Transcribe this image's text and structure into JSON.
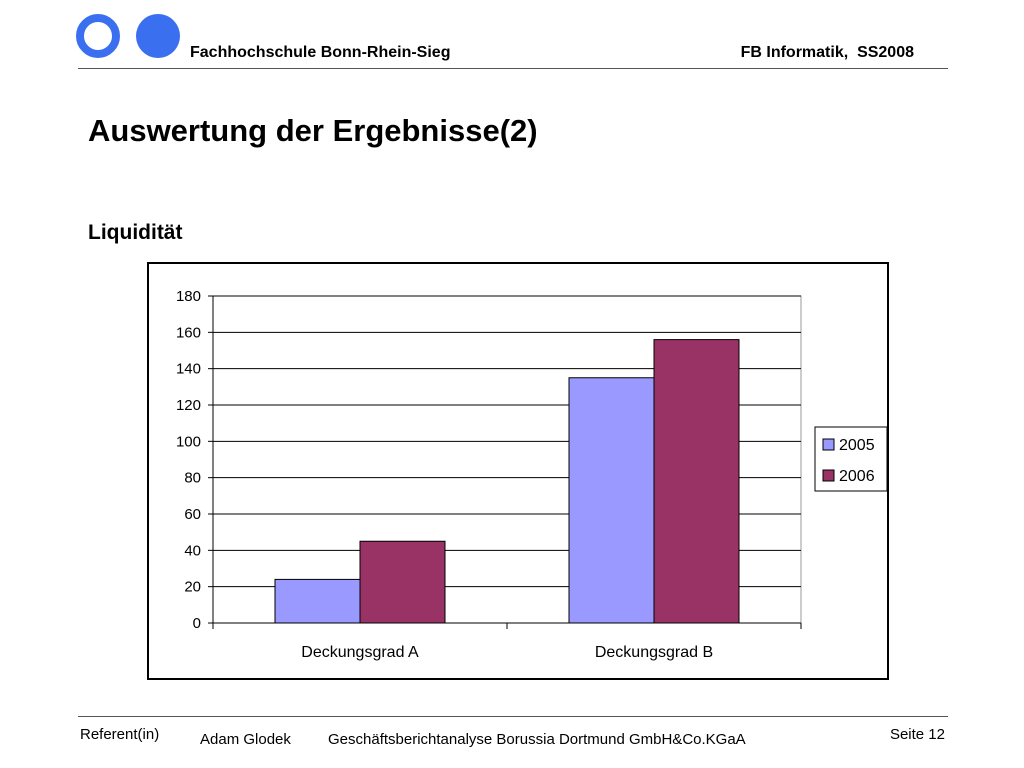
{
  "header": {
    "institution": "Fachhochschule Bonn-Rhein-Sieg",
    "department": "FB Informatik,  SS2008"
  },
  "slide": {
    "title": "Auswertung der Ergebnisse(2)",
    "subtitle": "Liquidität"
  },
  "chart_data": {
    "type": "bar",
    "categories": [
      "Deckungsgrad A",
      "Deckungsgrad B"
    ],
    "series": [
      {
        "name": "2005",
        "values": [
          24,
          135
        ],
        "color": "#9999ff"
      },
      {
        "name": "2006",
        "values": [
          45,
          156
        ],
        "color": "#993366"
      }
    ],
    "ylim": [
      0,
      180
    ],
    "yticks": [
      0,
      20,
      40,
      60,
      80,
      100,
      120,
      140,
      160,
      180
    ],
    "grid": true,
    "legend": "right"
  },
  "footer": {
    "referent_label": "Referent(in)",
    "author": "Adam Glodek",
    "topic": "Geschäftsberichtanalyse Borussia Dortmund GmbH&Co.KGaA",
    "page": "Seite 12"
  }
}
